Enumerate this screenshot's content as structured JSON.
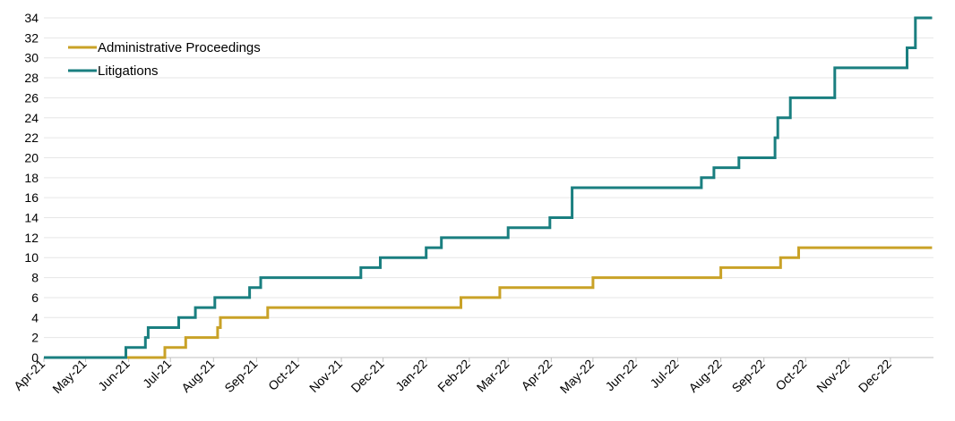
{
  "chart_data": {
    "type": "line",
    "step": true,
    "title": "",
    "xlabel": "",
    "ylabel": "",
    "ylim": [
      0,
      34
    ],
    "yticks": [
      0,
      2,
      4,
      6,
      8,
      10,
      12,
      14,
      16,
      18,
      20,
      22,
      24,
      26,
      28,
      30,
      32,
      34
    ],
    "x_tick_labels": [
      "Apr-21",
      "May-21",
      "Jun-21",
      "Jul-21",
      "Aug-21",
      "Sep-21",
      "Oct-21",
      "Nov-21",
      "Dec-21",
      "Jan-22",
      "Feb-22",
      "Mar-22",
      "Apr-22",
      "May-22",
      "Jun-22",
      "Jul-22",
      "Aug-22",
      "Sep-22",
      "Oct-22",
      "Nov-22",
      "Dec-22"
    ],
    "x_range": [
      "2021-04-01",
      "2022-12-31"
    ],
    "grid": true,
    "legend_position": "top-left",
    "series": [
      {
        "name": "Administrative Proceedings",
        "color": "#C9A227",
        "points": [
          [
            "2021-04-01",
            0
          ],
          [
            "2021-06-27",
            1
          ],
          [
            "2021-07-12",
            2
          ],
          [
            "2021-08-04",
            3
          ],
          [
            "2021-08-06",
            4
          ],
          [
            "2021-09-09",
            5
          ],
          [
            "2022-01-26",
            6
          ],
          [
            "2022-02-23",
            7
          ],
          [
            "2022-05-01",
            8
          ],
          [
            "2022-08-01",
            9
          ],
          [
            "2022-09-13",
            10
          ],
          [
            "2022-09-26",
            11
          ],
          [
            "2022-12-31",
            11
          ]
        ]
      },
      {
        "name": "Litigations",
        "color": "#1A7F80",
        "points": [
          [
            "2021-04-01",
            0
          ],
          [
            "2021-05-30",
            1
          ],
          [
            "2021-06-13",
            2
          ],
          [
            "2021-06-15",
            3
          ],
          [
            "2021-07-07",
            4
          ],
          [
            "2021-07-19",
            5
          ],
          [
            "2021-08-02",
            6
          ],
          [
            "2021-08-27",
            7
          ],
          [
            "2021-09-04",
            8
          ],
          [
            "2021-11-15",
            9
          ],
          [
            "2021-11-29",
            10
          ],
          [
            "2022-01-01",
            11
          ],
          [
            "2022-01-12",
            12
          ],
          [
            "2022-03-01",
            13
          ],
          [
            "2022-03-31",
            14
          ],
          [
            "2022-04-16",
            17
          ],
          [
            "2022-07-18",
            18
          ],
          [
            "2022-07-27",
            19
          ],
          [
            "2022-08-14",
            20
          ],
          [
            "2022-09-09",
            22
          ],
          [
            "2022-09-11",
            24
          ],
          [
            "2022-09-20",
            26
          ],
          [
            "2022-10-22",
            29
          ],
          [
            "2022-12-13",
            31
          ],
          [
            "2022-12-19",
            34
          ],
          [
            "2022-12-31",
            34
          ]
        ]
      }
    ]
  }
}
